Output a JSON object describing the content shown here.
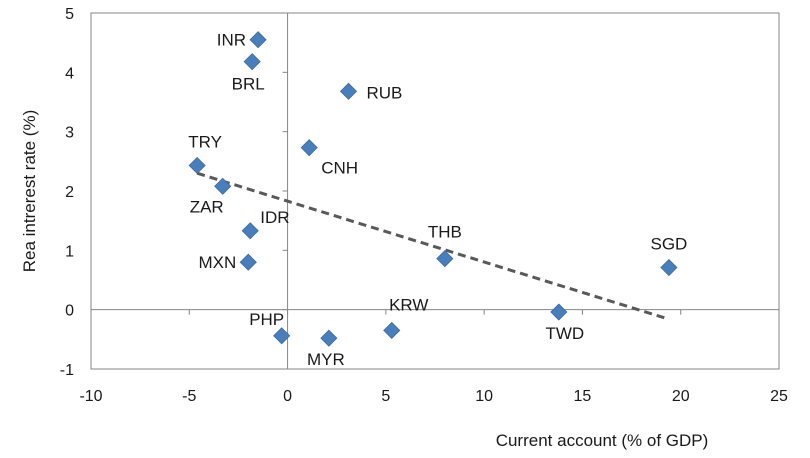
{
  "chart_data": {
    "type": "scatter",
    "title": "",
    "xlabel": "Current account (% of GDP)",
    "ylabel": "Rea intrerest rate (%)",
    "xlim": [
      -10,
      25
    ],
    "ylim": [
      -1,
      5
    ],
    "x_ticks": [
      -10,
      -5,
      0,
      5,
      10,
      15,
      20,
      25
    ],
    "y_ticks": [
      -1,
      0,
      1,
      2,
      3,
      4,
      5
    ],
    "grid": false,
    "legend": "none",
    "marker": "diamond",
    "series": [
      {
        "color": "#4a7ebb",
        "points": [
          {
            "label": "INR",
            "x": -1.5,
            "y": 4.55
          },
          {
            "label": "BRL",
            "x": -1.8,
            "y": 4.18
          },
          {
            "label": "RUB",
            "x": 3.1,
            "y": 3.68
          },
          {
            "label": "CNH",
            "x": 1.1,
            "y": 2.73
          },
          {
            "label": "TRY",
            "x": -4.6,
            "y": 2.43
          },
          {
            "label": "ZAR",
            "x": -3.3,
            "y": 2.08
          },
          {
            "label": "IDR",
            "x": -1.9,
            "y": 1.33
          },
          {
            "label": "MXN",
            "x": -2.0,
            "y": 0.8
          },
          {
            "label": "THB",
            "x": 8.0,
            "y": 0.86
          },
          {
            "label": "SGD",
            "x": 19.4,
            "y": 0.71
          },
          {
            "label": "TWD",
            "x": 13.8,
            "y": -0.04
          },
          {
            "label": "KRW",
            "x": 5.3,
            "y": -0.35
          },
          {
            "label": "PHP",
            "x": -0.3,
            "y": -0.44
          },
          {
            "label": "MYR",
            "x": 2.1,
            "y": -0.48
          }
        ]
      }
    ],
    "trendline": {
      "style": "dashed",
      "color": "#595959",
      "from": {
        "x": -4.6,
        "y": 2.3
      },
      "to": {
        "x": 19.3,
        "y": -0.15
      }
    }
  }
}
